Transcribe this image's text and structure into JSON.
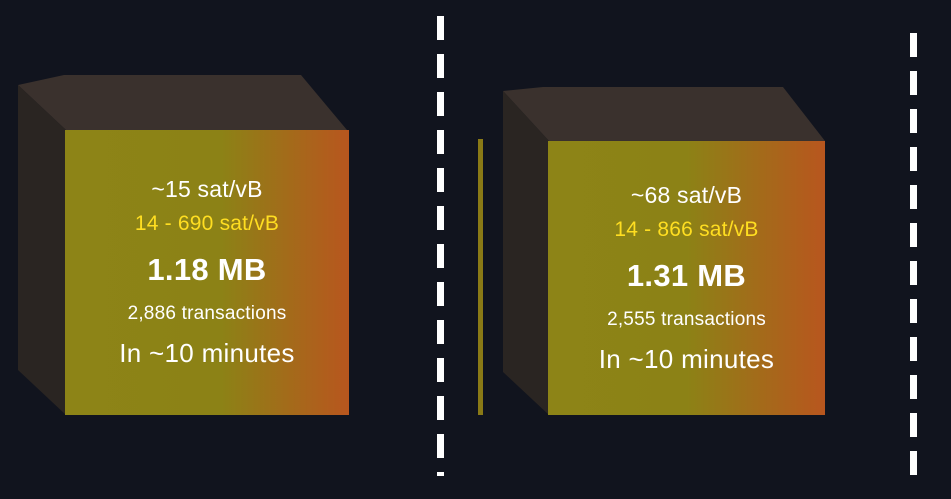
{
  "blocks": [
    {
      "median_fee": "~15 sat/vB",
      "fee_range": "14 - 690 sat/vB",
      "size": "1.18 MB",
      "transactions": "2,886 transactions",
      "eta": "In ~10 minutes"
    },
    {
      "median_fee": "~68 sat/vB",
      "fee_range": "14 - 866 sat/vB",
      "size": "1.31 MB",
      "transactions": "2,555 transactions",
      "eta": "In ~10 minutes"
    }
  ],
  "colors": {
    "background": "#11141e",
    "fee_range_text": "#ffde21",
    "face_gradient_start": "#8d8417",
    "face_gradient_end": "#b8561e",
    "block_side": "#2a2522",
    "block_top": "#3a312d",
    "divider": "#ffffff"
  }
}
